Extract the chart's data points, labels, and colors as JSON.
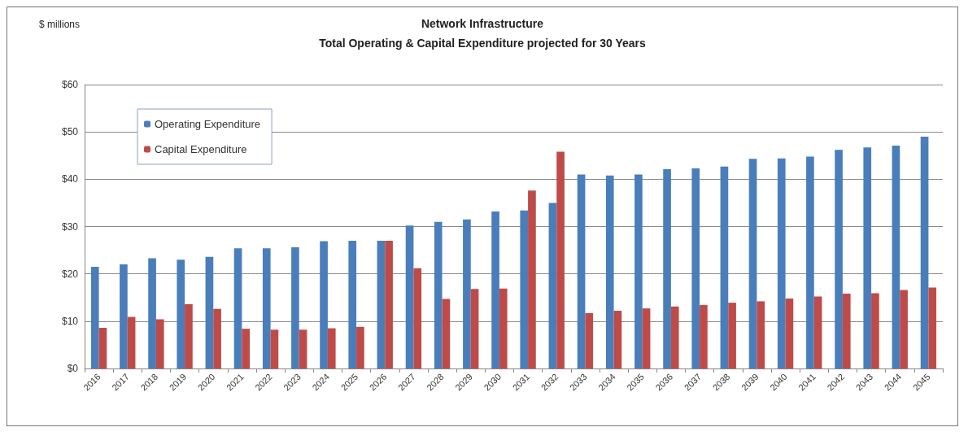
{
  "chart_data": {
    "type": "bar",
    "title": "Network Infrastructure",
    "subtitle": "Total Operating & Capital Expenditure projected for 30 Years",
    "ylabel": "$ millions",
    "categories": [
      "2016",
      "2017",
      "2018",
      "2019",
      "2020",
      "2021",
      "2022",
      "2023",
      "2024",
      "2025",
      "2026",
      "2027",
      "2028",
      "2029",
      "2030",
      "2031",
      "2032",
      "2033",
      "2034",
      "2035",
      "2036",
      "2037",
      "2038",
      "2039",
      "2040",
      "2041",
      "2042",
      "2043",
      "2044",
      "2045"
    ],
    "series": [
      {
        "name": "Operating Expenditure",
        "color": "#4a7ebb",
        "values": [
          21.5,
          22,
          23.3,
          23,
          23.6,
          25.4,
          25.4,
          25.6,
          26.9,
          27,
          27,
          30.2,
          31,
          31.5,
          33.2,
          33.4,
          35,
          41,
          40.8,
          41,
          42.1,
          42.3,
          42.7,
          44.3,
          44.4,
          44.8,
          46.2,
          46.7,
          47.1,
          49
        ]
      },
      {
        "name": "Capital Expenditure",
        "color": "#be4b48",
        "values": [
          8.6,
          10.9,
          10.4,
          13.6,
          12.6,
          8.4,
          8.2,
          8.2,
          8.5,
          8.8,
          27,
          21.2,
          14.7,
          16.8,
          16.9,
          37.6,
          45.8,
          11.7,
          12.2,
          12.7,
          13.1,
          13.4,
          13.9,
          14.2,
          14.8,
          15.2,
          15.8,
          15.9,
          16.6,
          17.1
        ]
      }
    ],
    "ylim": [
      0,
      60
    ],
    "yticks": [
      {
        "value": 0,
        "label": "$0"
      },
      {
        "value": 10,
        "label": "$10"
      },
      {
        "value": 20,
        "label": "$20"
      },
      {
        "value": 30,
        "label": "$30"
      },
      {
        "value": 40,
        "label": "$40"
      },
      {
        "value": 50,
        "label": "$50"
      },
      {
        "value": 60,
        "label": "$60"
      }
    ],
    "grid": "y",
    "legend": "top left"
  }
}
